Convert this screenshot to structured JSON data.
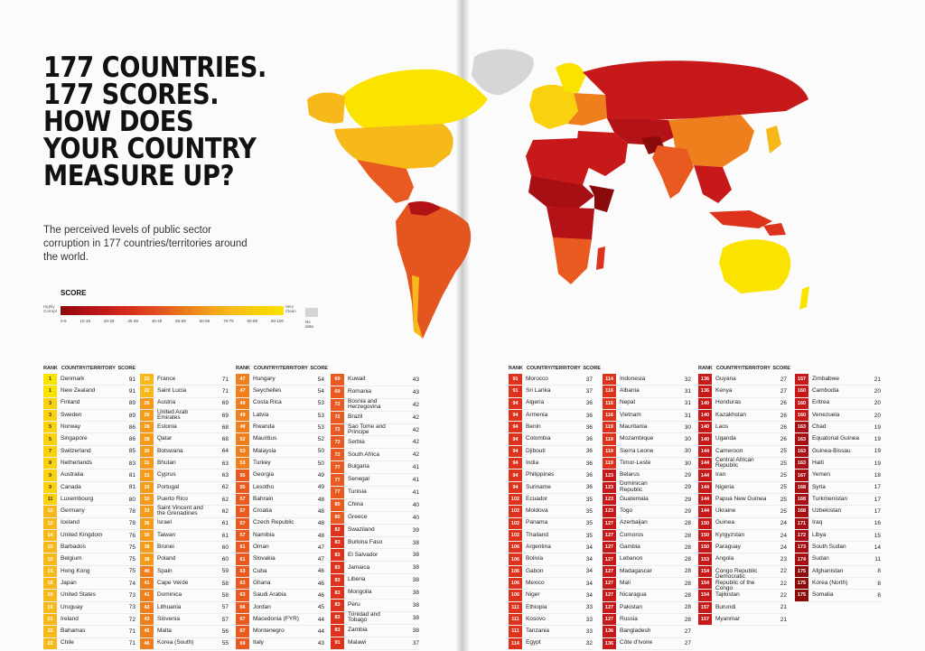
{
  "headline": [
    "177 COUNTRIES.",
    "177 SCORES.",
    "HOW DOES",
    "YOUR COUNTRY",
    "MEASURE UP?"
  ],
  "subtitle": "The perceived levels of public sector corruption in 177 countries/territories around the world.",
  "legend": {
    "title": "SCORE",
    "low_label": "Highly Corrupt",
    "high_label": "Very Clean",
    "ranges": [
      "0-9",
      "10-19",
      "20-29",
      "30-39",
      "40-49",
      "50-59",
      "60-69",
      "70-79",
      "80-89",
      "90-100"
    ],
    "no_data": "No data",
    "colors": [
      "#8b0a0a",
      "#a80f14",
      "#c8191a",
      "#dd331d",
      "#e85a1f",
      "#ef7f1c",
      "#f49b1b",
      "#f7b81a",
      "#f9d10f",
      "#fbe300"
    ]
  },
  "headers": {
    "rank": "RANK",
    "country": "COUNTRY/TERRITORY",
    "score": "SCORE"
  },
  "columns": [
    {
      "id": "c1",
      "rows": [
        {
          "rank": "1",
          "country": "Denmark",
          "score": "91"
        },
        {
          "rank": "1",
          "country": "New Zealand",
          "score": "91"
        },
        {
          "rank": "3",
          "country": "Finland",
          "score": "89"
        },
        {
          "rank": "3",
          "country": "Sweden",
          "score": "89"
        },
        {
          "rank": "5",
          "country": "Norway",
          "score": "86"
        },
        {
          "rank": "5",
          "country": "Singapore",
          "score": "86"
        },
        {
          "rank": "7",
          "country": "Switzerland",
          "score": "85"
        },
        {
          "rank": "8",
          "country": "Netherlands",
          "score": "83"
        },
        {
          "rank": "9",
          "country": "Australia",
          "score": "81"
        },
        {
          "rank": "9",
          "country": "Canada",
          "score": "81"
        },
        {
          "rank": "11",
          "country": "Luxembourg",
          "score": "80"
        },
        {
          "rank": "12",
          "country": "Germany",
          "score": "78"
        },
        {
          "rank": "12",
          "country": "Iceland",
          "score": "78"
        },
        {
          "rank": "14",
          "country": "United Kingdom",
          "score": "76"
        },
        {
          "rank": "15",
          "country": "Barbados",
          "score": "75"
        },
        {
          "rank": "15",
          "country": "Belgium",
          "score": "75"
        },
        {
          "rank": "15",
          "country": "Hong Kong",
          "score": "75"
        },
        {
          "rank": "18",
          "country": "Japan",
          "score": "74"
        },
        {
          "rank": "19",
          "country": "United States",
          "score": "73"
        },
        {
          "rank": "19",
          "country": "Uruguay",
          "score": "73"
        },
        {
          "rank": "21",
          "country": "Ireland",
          "score": "72"
        },
        {
          "rank": "22",
          "country": "Bahamas",
          "score": "71"
        },
        {
          "rank": "22",
          "country": "Chile",
          "score": "71"
        }
      ]
    },
    {
      "id": "c2",
      "rows": [
        {
          "rank": "22",
          "country": "France",
          "score": "71"
        },
        {
          "rank": "22",
          "country": "Saint Lucia",
          "score": "71"
        },
        {
          "rank": "26",
          "country": "Austria",
          "score": "69"
        },
        {
          "rank": "26",
          "country": "United Arab Emirates",
          "score": "69"
        },
        {
          "rank": "28",
          "country": "Estonia",
          "score": "68"
        },
        {
          "rank": "28",
          "country": "Qatar",
          "score": "68"
        },
        {
          "rank": "30",
          "country": "Botswana",
          "score": "64"
        },
        {
          "rank": "31",
          "country": "Bhutan",
          "score": "63"
        },
        {
          "rank": "31",
          "country": "Cyprus",
          "score": "63"
        },
        {
          "rank": "33",
          "country": "Portugal",
          "score": "62"
        },
        {
          "rank": "33",
          "country": "Puerto Rico",
          "score": "62"
        },
        {
          "rank": "33",
          "country": "Saint Vincent and the Grenadines",
          "score": "62"
        },
        {
          "rank": "36",
          "country": "Israel",
          "score": "61"
        },
        {
          "rank": "36",
          "country": "Taiwan",
          "score": "61"
        },
        {
          "rank": "38",
          "country": "Brunei",
          "score": "60"
        },
        {
          "rank": "38",
          "country": "Poland",
          "score": "60"
        },
        {
          "rank": "40",
          "country": "Spain",
          "score": "59"
        },
        {
          "rank": "41",
          "country": "Cape Verde",
          "score": "58"
        },
        {
          "rank": "41",
          "country": "Dominica",
          "score": "58"
        },
        {
          "rank": "43",
          "country": "Lithuania",
          "score": "57"
        },
        {
          "rank": "43",
          "country": "Slovenia",
          "score": "57"
        },
        {
          "rank": "45",
          "country": "Malta",
          "score": "56"
        },
        {
          "rank": "46",
          "country": "Korea (South)",
          "score": "55"
        }
      ]
    },
    {
      "id": "c3",
      "rows": [
        {
          "rank": "47",
          "country": "Hungary",
          "score": "54"
        },
        {
          "rank": "47",
          "country": "Seychelles",
          "score": "54"
        },
        {
          "rank": "49",
          "country": "Costa Rica",
          "score": "53"
        },
        {
          "rank": "49",
          "country": "Latvia",
          "score": "53"
        },
        {
          "rank": "49",
          "country": "Rwanda",
          "score": "53"
        },
        {
          "rank": "52",
          "country": "Mauritius",
          "score": "52"
        },
        {
          "rank": "53",
          "country": "Malaysia",
          "score": "50"
        },
        {
          "rank": "53",
          "country": "Turkey",
          "score": "50"
        },
        {
          "rank": "55",
          "country": "Georgia",
          "score": "49"
        },
        {
          "rank": "55",
          "country": "Lesotho",
          "score": "49"
        },
        {
          "rank": "57",
          "country": "Bahrain",
          "score": "48"
        },
        {
          "rank": "57",
          "country": "Croatia",
          "score": "48"
        },
        {
          "rank": "57",
          "country": "Czech Republic",
          "score": "48"
        },
        {
          "rank": "57",
          "country": "Namibia",
          "score": "48"
        },
        {
          "rank": "61",
          "country": "Oman",
          "score": "47"
        },
        {
          "rank": "61",
          "country": "Slovakia",
          "score": "47"
        },
        {
          "rank": "63",
          "country": "Cuba",
          "score": "46"
        },
        {
          "rank": "63",
          "country": "Ghana",
          "score": "46"
        },
        {
          "rank": "63",
          "country": "Saudi Arabia",
          "score": "46"
        },
        {
          "rank": "66",
          "country": "Jordan",
          "score": "45"
        },
        {
          "rank": "67",
          "country": "Macedonia (FYR)",
          "score": "44"
        },
        {
          "rank": "67",
          "country": "Montenegro",
          "score": "44"
        },
        {
          "rank": "69",
          "country": "Italy",
          "score": "43"
        }
      ]
    },
    {
      "id": "c4",
      "rows": [
        {
          "rank": "69",
          "country": "Kuwait",
          "score": "43"
        },
        {
          "rank": "69",
          "country": "Romania",
          "score": "43"
        },
        {
          "rank": "72",
          "country": "Bosnia and Herzegovina",
          "score": "42"
        },
        {
          "rank": "72",
          "country": "Brazil",
          "score": "42"
        },
        {
          "rank": "72",
          "country": "Sao Tome and Principe",
          "score": "42"
        },
        {
          "rank": "72",
          "country": "Serbia",
          "score": "42"
        },
        {
          "rank": "72",
          "country": "South Africa",
          "score": "42"
        },
        {
          "rank": "77",
          "country": "Bulgaria",
          "score": "41"
        },
        {
          "rank": "77",
          "country": "Senegal",
          "score": "41"
        },
        {
          "rank": "77",
          "country": "Tunisia",
          "score": "41"
        },
        {
          "rank": "80",
          "country": "China",
          "score": "40"
        },
        {
          "rank": "80",
          "country": "Greece",
          "score": "40"
        },
        {
          "rank": "82",
          "country": "Swaziland",
          "score": "39"
        },
        {
          "rank": "83",
          "country": "Burkina Faso",
          "score": "38"
        },
        {
          "rank": "83",
          "country": "El Salvador",
          "score": "38"
        },
        {
          "rank": "83",
          "country": "Jamaica",
          "score": "38"
        },
        {
          "rank": "83",
          "country": "Liberia",
          "score": "38"
        },
        {
          "rank": "83",
          "country": "Mongolia",
          "score": "38"
        },
        {
          "rank": "83",
          "country": "Peru",
          "score": "38"
        },
        {
          "rank": "83",
          "country": "Trinidad and Tobago",
          "score": "38"
        },
        {
          "rank": "83",
          "country": "Zambia",
          "score": "38"
        },
        {
          "rank": "91",
          "country": "Malawi",
          "score": "37"
        }
      ]
    },
    {
      "id": "c5",
      "rows": [
        {
          "rank": "91",
          "country": "Morocco",
          "score": "37"
        },
        {
          "rank": "91",
          "country": "Sri Lanka",
          "score": "37"
        },
        {
          "rank": "94",
          "country": "Algeria",
          "score": "36"
        },
        {
          "rank": "94",
          "country": "Armenia",
          "score": "36"
        },
        {
          "rank": "94",
          "country": "Benin",
          "score": "36"
        },
        {
          "rank": "94",
          "country": "Colombia",
          "score": "36"
        },
        {
          "rank": "94",
          "country": "Djibouti",
          "score": "36"
        },
        {
          "rank": "94",
          "country": "India",
          "score": "36"
        },
        {
          "rank": "94",
          "country": "Philippines",
          "score": "36"
        },
        {
          "rank": "94",
          "country": "Suriname",
          "score": "36"
        },
        {
          "rank": "102",
          "country": "Ecuador",
          "score": "35"
        },
        {
          "rank": "102",
          "country": "Moldova",
          "score": "35"
        },
        {
          "rank": "102",
          "country": "Panama",
          "score": "35"
        },
        {
          "rank": "102",
          "country": "Thailand",
          "score": "35"
        },
        {
          "rank": "106",
          "country": "Argentina",
          "score": "34"
        },
        {
          "rank": "106",
          "country": "Bolivia",
          "score": "34"
        },
        {
          "rank": "106",
          "country": "Gabon",
          "score": "34"
        },
        {
          "rank": "106",
          "country": "Mexico",
          "score": "34"
        },
        {
          "rank": "106",
          "country": "Niger",
          "score": "34"
        },
        {
          "rank": "111",
          "country": "Ethiopia",
          "score": "33"
        },
        {
          "rank": "111",
          "country": "Kosovo",
          "score": "33"
        },
        {
          "rank": "111",
          "country": "Tanzania",
          "score": "33"
        },
        {
          "rank": "114",
          "country": "Egypt",
          "score": "32"
        }
      ]
    },
    {
      "id": "c6",
      "rows": [
        {
          "rank": "114",
          "country": "Indonesia",
          "score": "32"
        },
        {
          "rank": "116",
          "country": "Albania",
          "score": "31"
        },
        {
          "rank": "116",
          "country": "Nepal",
          "score": "31"
        },
        {
          "rank": "116",
          "country": "Vietnam",
          "score": "31"
        },
        {
          "rank": "119",
          "country": "Mauritania",
          "score": "30"
        },
        {
          "rank": "119",
          "country": "Mozambique",
          "score": "30"
        },
        {
          "rank": "119",
          "country": "Sierra Leone",
          "score": "30"
        },
        {
          "rank": "119",
          "country": "Timor-Leste",
          "score": "30"
        },
        {
          "rank": "123",
          "country": "Belarus",
          "score": "29"
        },
        {
          "rank": "123",
          "country": "Dominican Republic",
          "score": "29"
        },
        {
          "rank": "123",
          "country": "Guatemala",
          "score": "29"
        },
        {
          "rank": "123",
          "country": "Togo",
          "score": "29"
        },
        {
          "rank": "127",
          "country": "Azerbaijan",
          "score": "28"
        },
        {
          "rank": "127",
          "country": "Comoros",
          "score": "28"
        },
        {
          "rank": "127",
          "country": "Gambia",
          "score": "28"
        },
        {
          "rank": "127",
          "country": "Lebanon",
          "score": "28"
        },
        {
          "rank": "127",
          "country": "Madagascar",
          "score": "28"
        },
        {
          "rank": "127",
          "country": "Mali",
          "score": "28"
        },
        {
          "rank": "127",
          "country": "Nicaragua",
          "score": "28"
        },
        {
          "rank": "127",
          "country": "Pakistan",
          "score": "28"
        },
        {
          "rank": "127",
          "country": "Russia",
          "score": "28"
        },
        {
          "rank": "136",
          "country": "Bangladesh",
          "score": "27"
        },
        {
          "rank": "136",
          "country": "Côte d'Ivoire",
          "score": "27"
        }
      ]
    },
    {
      "id": "c7",
      "rows": [
        {
          "rank": "136",
          "country": "Guyana",
          "score": "27"
        },
        {
          "rank": "136",
          "country": "Kenya",
          "score": "27"
        },
        {
          "rank": "140",
          "country": "Honduras",
          "score": "26"
        },
        {
          "rank": "140",
          "country": "Kazakhstan",
          "score": "26"
        },
        {
          "rank": "140",
          "country": "Laos",
          "score": "26"
        },
        {
          "rank": "140",
          "country": "Uganda",
          "score": "26"
        },
        {
          "rank": "144",
          "country": "Cameroon",
          "score": "25"
        },
        {
          "rank": "144",
          "country": "Central African Republic",
          "score": "25"
        },
        {
          "rank": "144",
          "country": "Iran",
          "score": "25"
        },
        {
          "rank": "144",
          "country": "Nigeria",
          "score": "25"
        },
        {
          "rank": "144",
          "country": "Papua New Guinea",
          "score": "25"
        },
        {
          "rank": "144",
          "country": "Ukraine",
          "score": "25"
        },
        {
          "rank": "150",
          "country": "Guinea",
          "score": "24"
        },
        {
          "rank": "150",
          "country": "Kyrgyzstan",
          "score": "24"
        },
        {
          "rank": "150",
          "country": "Paraguay",
          "score": "24"
        },
        {
          "rank": "153",
          "country": "Angola",
          "score": "23"
        },
        {
          "rank": "154",
          "country": "Congo Republic",
          "score": "22"
        },
        {
          "rank": "154",
          "country": "Democratic Republic of the Congo",
          "score": "22"
        },
        {
          "rank": "154",
          "country": "Tajikistan",
          "score": "22"
        },
        {
          "rank": "157",
          "country": "Burundi",
          "score": "21"
        },
        {
          "rank": "157",
          "country": "Myanmar",
          "score": "21"
        }
      ]
    },
    {
      "id": "c8",
      "rows": [
        {
          "rank": "157",
          "country": "Zimbabwe",
          "score": "21"
        },
        {
          "rank": "160",
          "country": "Cambodia",
          "score": "20"
        },
        {
          "rank": "160",
          "country": "Eritrea",
          "score": "20"
        },
        {
          "rank": "160",
          "country": "Venezuela",
          "score": "20"
        },
        {
          "rank": "163",
          "country": "Chad",
          "score": "19"
        },
        {
          "rank": "163",
          "country": "Equatorial Guinea",
          "score": "19"
        },
        {
          "rank": "163",
          "country": "Guinea-Bissau",
          "score": "19"
        },
        {
          "rank": "163",
          "country": "Haiti",
          "score": "19"
        },
        {
          "rank": "167",
          "country": "Yemen",
          "score": "18"
        },
        {
          "rank": "168",
          "country": "Syria",
          "score": "17"
        },
        {
          "rank": "168",
          "country": "Turkmenistan",
          "score": "17"
        },
        {
          "rank": "168",
          "country": "Uzbekistan",
          "score": "17"
        },
        {
          "rank": "171",
          "country": "Iraq",
          "score": "16"
        },
        {
          "rank": "172",
          "country": "Libya",
          "score": "15"
        },
        {
          "rank": "173",
          "country": "South Sudan",
          "score": "14"
        },
        {
          "rank": "174",
          "country": "Sudan",
          "score": "11"
        },
        {
          "rank": "175",
          "country": "Afghanistan",
          "score": "8"
        },
        {
          "rank": "175",
          "country": "Korea (North)",
          "score": "8"
        },
        {
          "rank": "175",
          "country": "Somalia",
          "score": "8"
        }
      ]
    }
  ]
}
